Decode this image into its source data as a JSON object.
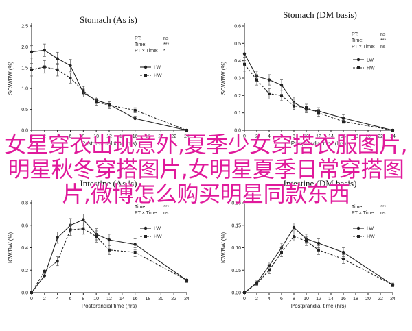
{
  "overlay_text": "女星穿衣出现意外,夏季少女穿搭衣服图片,明星秋冬穿搭图片,女明星夏季日常穿搭图片,微博怎么购买明星同款东西",
  "colors": {
    "line": "#222222",
    "overlay": "#e0199b"
  },
  "chart_data": [
    {
      "type": "line",
      "title": "Stomach (As is)",
      "xlabel": "Postprandial time (hrs)",
      "ylabel": "SCW/BW (%)",
      "xlim": [
        0,
        24
      ],
      "ylim": [
        0,
        2.5
      ],
      "xticks": [
        0,
        2,
        4,
        6,
        8,
        10,
        12,
        14,
        16,
        18,
        20,
        22,
        24
      ],
      "yticks": [
        "0.0",
        "0.5",
        "1.0",
        "1.5",
        "2.0",
        "2.5"
      ],
      "stats": [
        {
          "label": "PT:",
          "value": "ns"
        },
        {
          "label": "Time:",
          "value": "***"
        },
        {
          "label": "PT × Time:",
          "value": "*"
        }
      ],
      "series": [
        {
          "name": "LW",
          "x": [
            0,
            2,
            4,
            6,
            8,
            10,
            12,
            16,
            24
          ],
          "y": [
            1.88,
            1.92,
            1.72,
            1.55,
            0.9,
            0.72,
            0.62,
            0.28,
            0.0
          ],
          "err": [
            0.15,
            0.15,
            0.15,
            0.15,
            0.1,
            0.08,
            0.08,
            0.06,
            0.02
          ]
        },
        {
          "name": "HW",
          "x": [
            0,
            2,
            4,
            6,
            8,
            10,
            12,
            16,
            24
          ],
          "y": [
            1.45,
            1.52,
            1.45,
            1.25,
            0.95,
            0.68,
            0.6,
            0.48,
            0.0
          ],
          "err": [
            0.15,
            0.15,
            0.15,
            0.12,
            0.1,
            0.08,
            0.08,
            0.06,
            0.02
          ]
        }
      ]
    },
    {
      "type": "line",
      "title": "Stomach (DM basis)",
      "xlabel": "Postprandial time (hrs)",
      "ylabel": "SCW/BW (%)",
      "xlim": [
        0,
        24
      ],
      "ylim": [
        0,
        0.6
      ],
      "xticks": [
        0,
        2,
        4,
        6,
        8,
        10,
        12,
        14,
        16,
        18,
        20,
        22,
        24
      ],
      "yticks": [
        "0.0",
        "0.1",
        "0.2",
        "0.3",
        "0.4",
        "0.5",
        "0.6"
      ],
      "stats": [
        {
          "label": "PT:",
          "value": "ns"
        },
        {
          "label": "Time:",
          "value": "***"
        },
        {
          "label": "PT × Time:",
          "value": "ns"
        }
      ],
      "series": [
        {
          "name": "LW",
          "x": [
            0,
            2,
            4,
            6,
            8,
            10,
            12,
            16,
            24
          ],
          "y": [
            0.44,
            0.31,
            0.29,
            0.26,
            0.16,
            0.12,
            0.11,
            0.07,
            0.0
          ],
          "err": [
            0.04,
            0.03,
            0.03,
            0.03,
            0.03,
            0.02,
            0.02,
            0.02,
            0.005
          ]
        },
        {
          "name": "HW",
          "x": [
            0,
            2,
            4,
            6,
            8,
            10,
            12,
            16,
            24
          ],
          "y": [
            0.38,
            0.29,
            0.21,
            0.2,
            0.14,
            0.13,
            0.1,
            0.05,
            0.0
          ],
          "err": [
            0.04,
            0.03,
            0.03,
            0.03,
            0.02,
            0.02,
            0.02,
            0.01,
            0.005
          ]
        }
      ]
    },
    {
      "type": "line",
      "title": "Intestine (As is)",
      "xlabel": "Postprandial time (hrs)",
      "ylabel": "ICW/BW (%)",
      "xlim": [
        0,
        24
      ],
      "ylim": [
        0,
        0.8
      ],
      "xticks": [
        0,
        2,
        4,
        6,
        8,
        10,
        12,
        14,
        16,
        18,
        20,
        22,
        24
      ],
      "yticks": [
        "0.0",
        "0.2",
        "0.4",
        "0.6",
        "0.8"
      ],
      "stats": [
        {
          "label": "Time:",
          "value": "***"
        },
        {
          "label": "PT × Time:",
          "value": "ns"
        }
      ],
      "series": [
        {
          "name": "LW",
          "x": [
            0,
            2,
            4,
            6,
            8,
            10,
            12,
            16,
            24
          ],
          "y": [
            0.0,
            0.15,
            0.49,
            0.6,
            0.65,
            0.52,
            0.47,
            0.43,
            0.11
          ],
          "err": [
            0.0,
            0.02,
            0.05,
            0.06,
            0.05,
            0.05,
            0.05,
            0.05,
            0.02
          ]
        },
        {
          "name": "HW",
          "x": [
            0,
            2,
            4,
            6,
            8,
            10,
            12,
            16,
            24
          ],
          "y": [
            0.0,
            0.19,
            0.28,
            0.56,
            0.57,
            0.5,
            0.38,
            0.36,
            0.11
          ],
          "err": [
            0.0,
            0.02,
            0.04,
            0.05,
            0.05,
            0.05,
            0.04,
            0.04,
            0.02
          ]
        }
      ]
    },
    {
      "type": "line",
      "title": "Intestine (DM basis)",
      "xlabel": "Postprandial time (hrs)",
      "ylabel": "ICW/BW (%)",
      "xlim": [
        0,
        24
      ],
      "ylim": [
        0,
        0.2
      ],
      "xticks": [
        0,
        2,
        4,
        6,
        8,
        10,
        12,
        14,
        16,
        18,
        20,
        22,
        24
      ],
      "yticks": [
        "0.00",
        "0.05",
        "0.10",
        "0.15",
        "0.20"
      ],
      "stats": [
        {
          "label": "Time:",
          "value": "***"
        },
        {
          "label": "PT × Time:",
          "value": "ns"
        }
      ],
      "series": [
        {
          "name": "LW",
          "x": [
            0,
            2,
            4,
            6,
            8,
            10,
            12,
            16,
            24
          ],
          "y": [
            0.0,
            0.022,
            0.06,
            0.1,
            0.145,
            0.12,
            0.11,
            0.09,
            0.017
          ],
          "err": [
            0.0,
            0.004,
            0.008,
            0.01,
            0.01,
            0.01,
            0.01,
            0.01,
            0.004
          ]
        },
        {
          "name": "HW",
          "x": [
            0,
            2,
            4,
            6,
            8,
            10,
            12,
            16,
            24
          ],
          "y": [
            0.0,
            0.02,
            0.05,
            0.09,
            0.125,
            0.115,
            0.095,
            0.075,
            0.017
          ],
          "err": [
            0.0,
            0.004,
            0.008,
            0.01,
            0.01,
            0.01,
            0.01,
            0.01,
            0.004
          ]
        }
      ]
    }
  ]
}
